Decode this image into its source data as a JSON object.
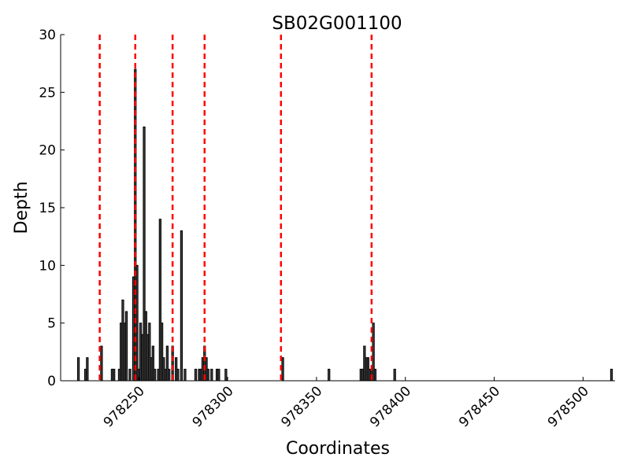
{
  "chart_data": {
    "type": "bar",
    "title": "SB02G001100",
    "xlabel": "Coordinates",
    "ylabel": "Depth",
    "xlim": [
      978206,
      978518
    ],
    "ylim": [
      0,
      30
    ],
    "xticks": [
      978250,
      978300,
      978350,
      978400,
      978450,
      978500
    ],
    "yticks": [
      0,
      5,
      10,
      15,
      20,
      25,
      30
    ],
    "grid": false,
    "colors": {
      "bar_fill": "#444444",
      "bar_edge": "#000000",
      "marker_line": "#ff0000"
    },
    "bar_width": 1,
    "series": [
      {
        "x": [
          978216,
          978220,
          978221,
          978229,
          978235,
          978236,
          978239,
          978240,
          978241,
          978242,
          978243,
          978245,
          978247,
          978248,
          978249,
          978250,
          978251,
          978252,
          978253,
          978254,
          978255,
          978256,
          978257,
          978258,
          978259,
          978261,
          978262,
          978263,
          978264,
          978265,
          978266,
          978267,
          978269,
          978271,
          978272,
          978274,
          978276,
          978282,
          978284,
          978285,
          978286,
          978287,
          978288,
          978289,
          978291,
          978294,
          978295,
          978299,
          978331,
          978357,
          978375,
          978376,
          978377,
          978378,
          978379,
          978380,
          978381,
          978382,
          978383,
          978394,
          978516
        ],
        "values": [
          2,
          1,
          2,
          3,
          1,
          1,
          1,
          5,
          7,
          5,
          6,
          1,
          9,
          27,
          10,
          1,
          5,
          4,
          22,
          6,
          4,
          5,
          2,
          3,
          1,
          1,
          14,
          5,
          2,
          1,
          3,
          1,
          3,
          2,
          1,
          13,
          1,
          1,
          1,
          1,
          2,
          3,
          2,
          1,
          1,
          1,
          1,
          1,
          2,
          1,
          1,
          1,
          3,
          2,
          2,
          1,
          1,
          5,
          1,
          1,
          1
        ]
      }
    ],
    "markers": [
      978228,
      978248,
      978269,
      978287,
      978330,
      978381
    ]
  }
}
